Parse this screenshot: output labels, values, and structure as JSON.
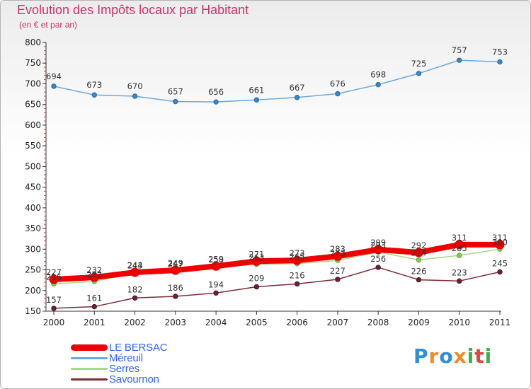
{
  "header": {
    "title": "Evolution des Impôts locaux par Habitant",
    "subtitle": "(en € et par an)"
  },
  "logo": {
    "letters": [
      {
        "ch": "P",
        "color": "#2f8fd6"
      },
      {
        "ch": "r",
        "color": "#f08a24"
      },
      {
        "ch": "o",
        "color": "#2f8fd6"
      },
      {
        "ch": "x",
        "color": "#f08a24"
      },
      {
        "ch": "i",
        "color": "#3fae49"
      },
      {
        "ch": "t",
        "color": "#e0463b"
      },
      {
        "ch": "i",
        "color": "#3fae49"
      }
    ]
  },
  "chart_data": {
    "type": "line",
    "title": "Evolution des Impôts locaux par Habitant",
    "subtitle": "(en € et par an)",
    "xlabel": "",
    "ylabel": "",
    "x": [
      "2000",
      "2001",
      "2002",
      "2003",
      "2004",
      "2005",
      "2006",
      "2007",
      "2008",
      "2009",
      "2010",
      "2011"
    ],
    "ylim": [
      150,
      800
    ],
    "yticks": [
      150,
      200,
      250,
      300,
      350,
      400,
      450,
      500,
      550,
      600,
      650,
      700,
      750,
      800
    ],
    "grid": false,
    "legend_position": "bottom-left",
    "series": [
      {
        "name": "LE BERSAC",
        "color": "#ee0000",
        "values": [
          227,
          232,
          244,
          249,
          259,
          271,
          273,
          283,
          299,
          292,
          311,
          311
        ]
      },
      {
        "name": "Méreuil",
        "color": "#6fa8d6",
        "values": [
          694,
          673,
          670,
          657,
          656,
          661,
          667,
          676,
          698,
          725,
          757,
          753
        ]
      },
      {
        "name": "Serres",
        "color": "#a8d888",
        "values": [
          216,
          222,
          243,
          247,
          258,
          263,
          265,
          273,
          293,
          274,
          285,
          300
        ]
      },
      {
        "name": "Savournon",
        "color": "#7a2d3a",
        "values": [
          157,
          161,
          182,
          186,
          194,
          209,
          216,
          227,
          256,
          226,
          223,
          245
        ]
      }
    ]
  }
}
